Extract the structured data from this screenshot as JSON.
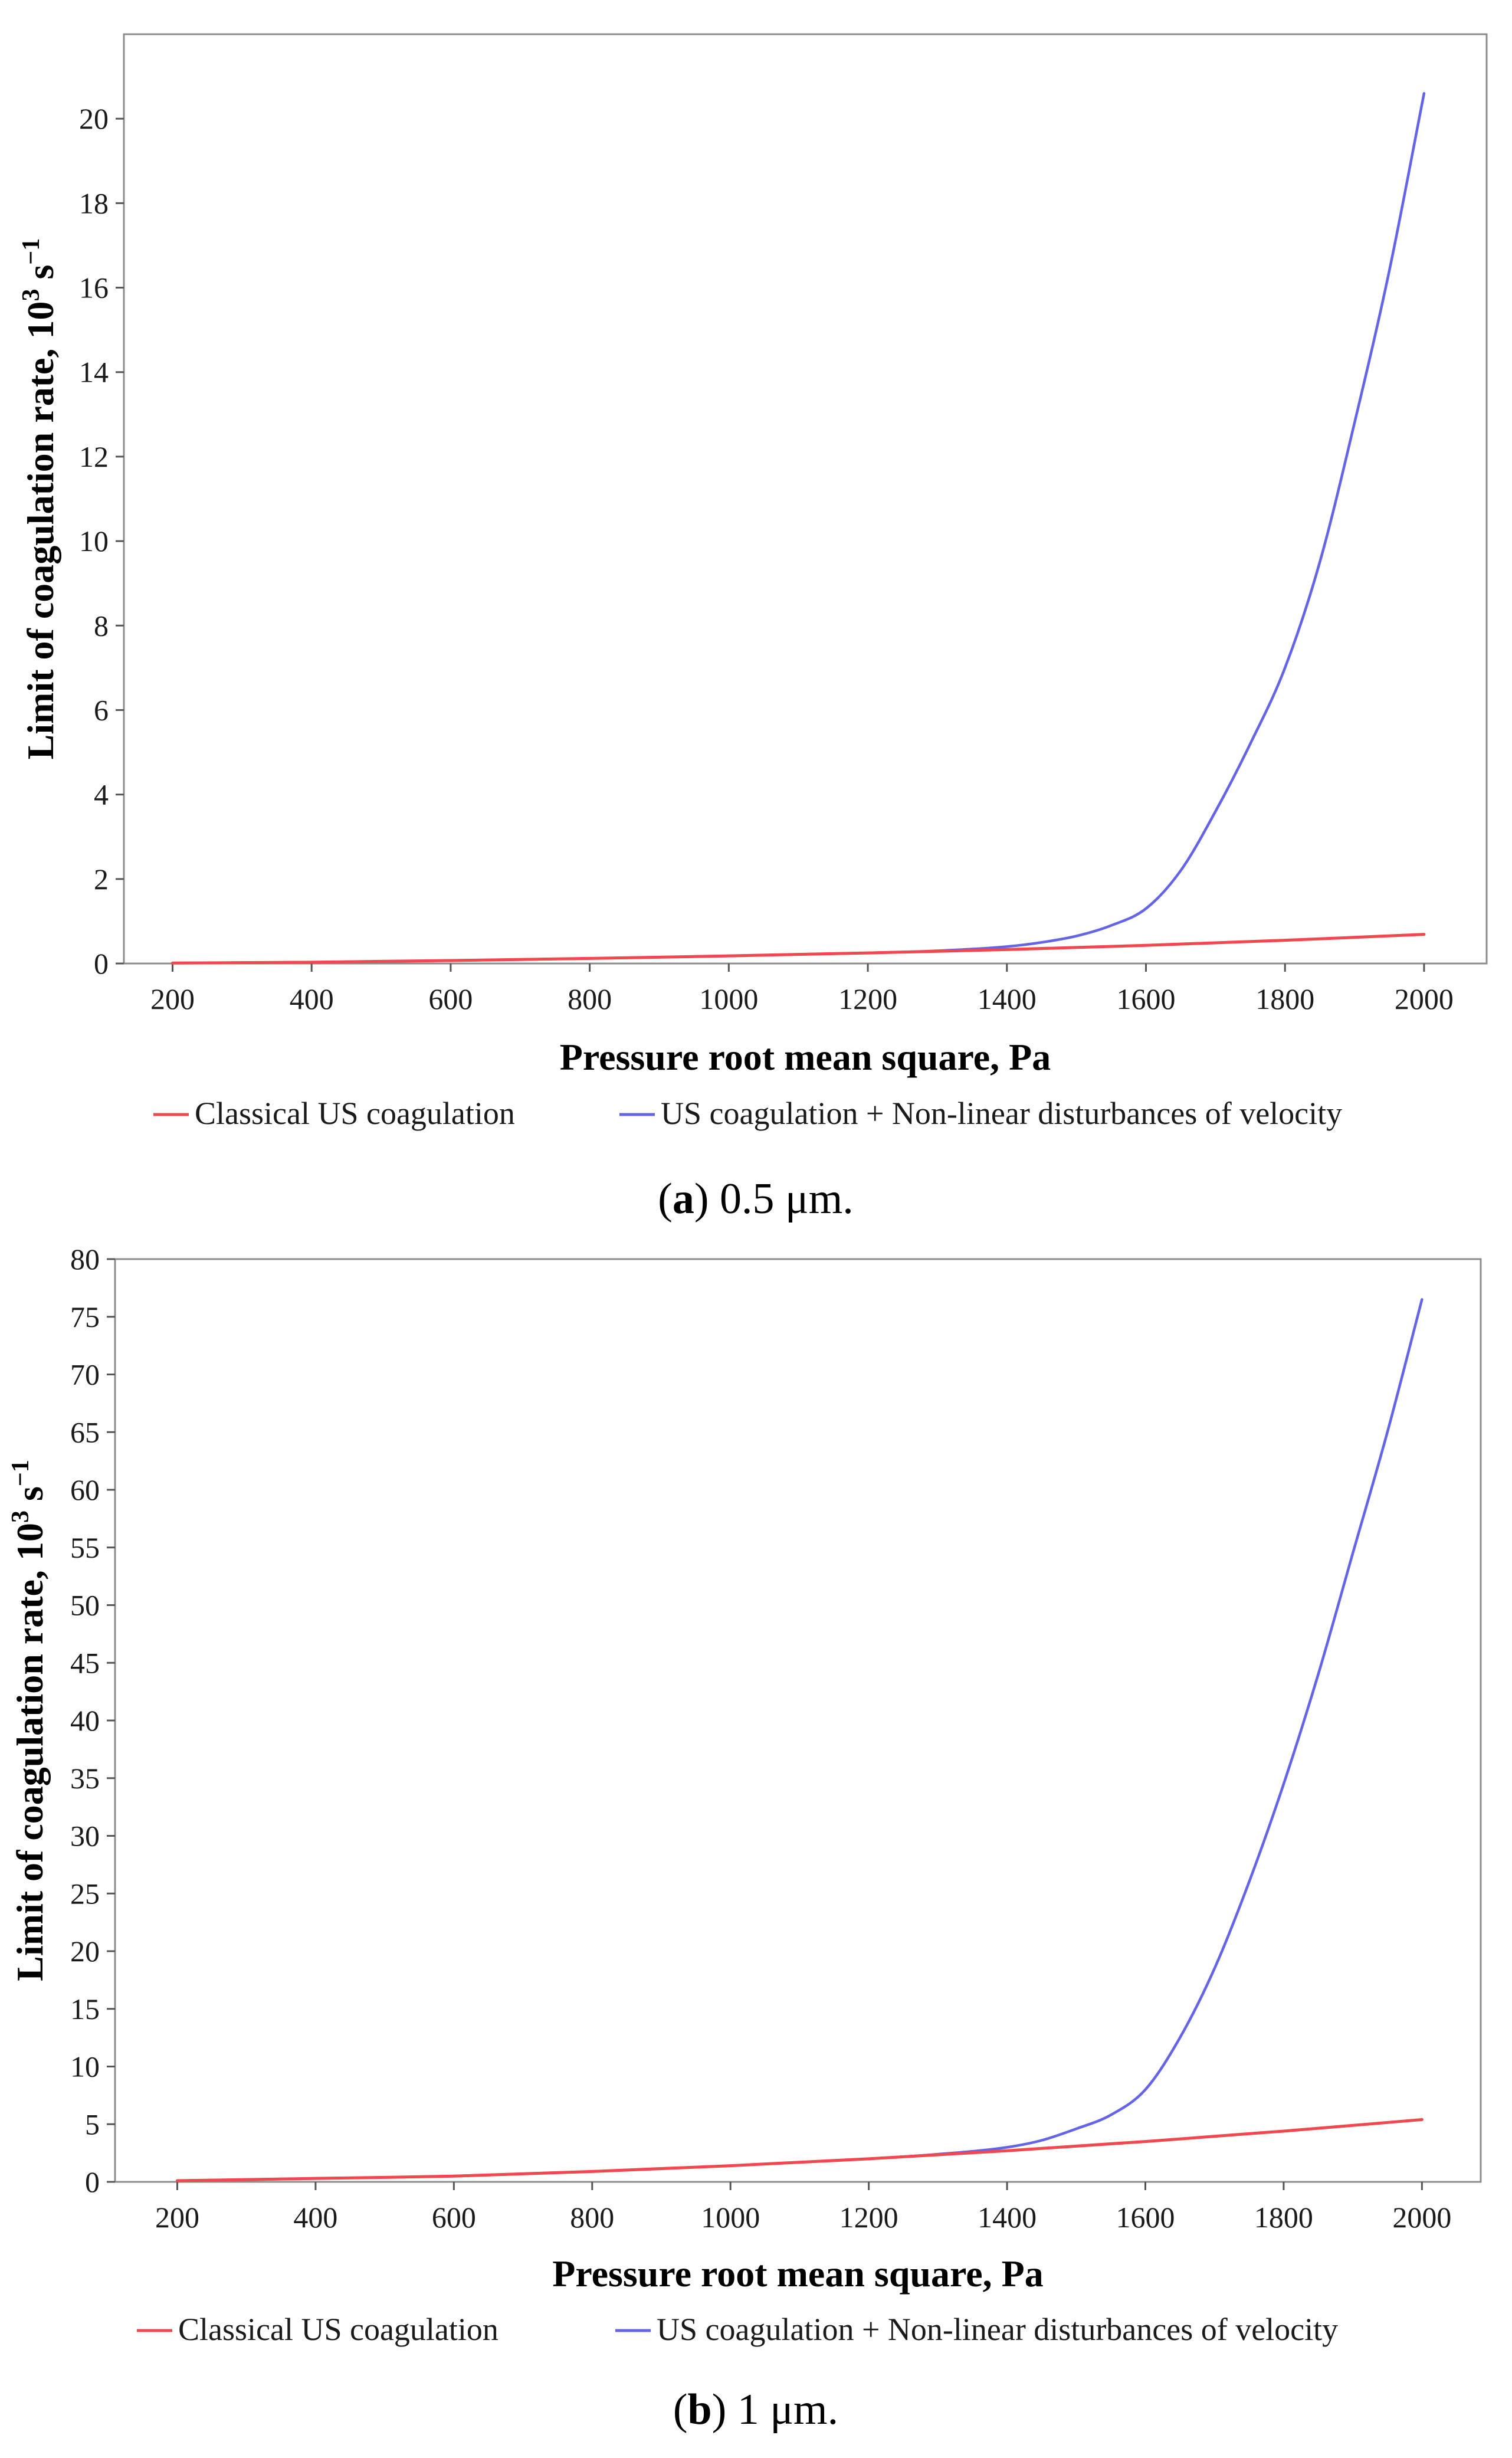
{
  "figure": {
    "panels": [
      {
        "caption_open": "(",
        "caption_letter": "a",
        "caption_rest": ") 0.5 μm."
      },
      {
        "caption_open": "(",
        "caption_letter": "b",
        "caption_rest": ") 1 μm."
      }
    ]
  },
  "colors": {
    "classical": "#f0484e",
    "nonlinear": "#6464e8",
    "frame": "#8c8c8c",
    "background": "#ffffff"
  },
  "chart_data": [
    {
      "type": "line",
      "title": "",
      "xlabel": "Pressure root mean square, Pa",
      "ylabel_main": "Limit of coagulation rate, 10",
      "ylabel_sup1": "3",
      "ylabel_mid": " s",
      "ylabel_sup2": "−1",
      "xlim": [
        130,
        2090
      ],
      "ylim": [
        0,
        22
      ],
      "xticks": [
        200,
        400,
        600,
        800,
        1000,
        1200,
        1400,
        1600,
        1800,
        2000
      ],
      "yticks": [
        0,
        2,
        4,
        6,
        8,
        10,
        12,
        14,
        16,
        18,
        20
      ],
      "grid": false,
      "legend_position": "bottom",
      "series": [
        {
          "name": "Classical US coagulation",
          "color": "#f0484e",
          "x": [
            200,
            400,
            600,
            800,
            1000,
            1200,
            1400,
            1600,
            1800,
            2000
          ],
          "y": [
            0.01,
            0.03,
            0.07,
            0.12,
            0.18,
            0.25,
            0.33,
            0.43,
            0.55,
            0.69
          ]
        },
        {
          "name": "US coagulation + Non-linear disturbances of velocity",
          "color": "#6464e8",
          "x": [
            200,
            400,
            600,
            800,
            1000,
            1200,
            1300,
            1400,
            1450,
            1500,
            1550,
            1600,
            1650,
            1700,
            1750,
            1800,
            1850,
            1900,
            1950,
            2000
          ],
          "y": [
            0.01,
            0.03,
            0.07,
            0.12,
            0.18,
            0.25,
            0.3,
            0.4,
            0.5,
            0.65,
            0.9,
            1.3,
            2.2,
            3.6,
            5.2,
            7.0,
            9.5,
            12.8,
            16.4,
            20.6
          ]
        }
      ]
    },
    {
      "type": "line",
      "title": "",
      "xlabel": "Pressure root mean square, Pa",
      "ylabel_main": "Limit of coagulation rate, 10",
      "ylabel_sup1": "3",
      "ylabel_mid": " s",
      "ylabel_sup2": "−1",
      "xlim": [
        110,
        2085
      ],
      "ylim": [
        0,
        80
      ],
      "xticks": [
        200,
        400,
        600,
        800,
        1000,
        1200,
        1400,
        1600,
        1800,
        2000
      ],
      "yticks": [
        0,
        5,
        10,
        15,
        20,
        25,
        30,
        35,
        40,
        45,
        50,
        55,
        60,
        65,
        70,
        75,
        80
      ],
      "grid": false,
      "legend_position": "bottom",
      "series": [
        {
          "name": "Classical US coagulation",
          "color": "#f0484e",
          "x": [
            200,
            400,
            600,
            800,
            1000,
            1200,
            1400,
            1600,
            1800,
            2000
          ],
          "y": [
            0.1,
            0.3,
            0.5,
            0.9,
            1.4,
            2.0,
            2.7,
            3.5,
            4.4,
            5.4
          ]
        },
        {
          "name": "US coagulation + Non-linear disturbances of velocity",
          "color": "#6464e8",
          "x": [
            200,
            400,
            600,
            800,
            1000,
            1200,
            1300,
            1400,
            1450,
            1500,
            1550,
            1600,
            1650,
            1700,
            1750,
            1800,
            1850,
            1900,
            1950,
            2000
          ],
          "y": [
            0.1,
            0.3,
            0.5,
            0.9,
            1.4,
            2.0,
            2.4,
            3.0,
            3.6,
            4.6,
            5.8,
            8.0,
            12.5,
            18.5,
            26.0,
            34.5,
            44.0,
            54.5,
            65.0,
            76.5
          ]
        }
      ]
    }
  ]
}
